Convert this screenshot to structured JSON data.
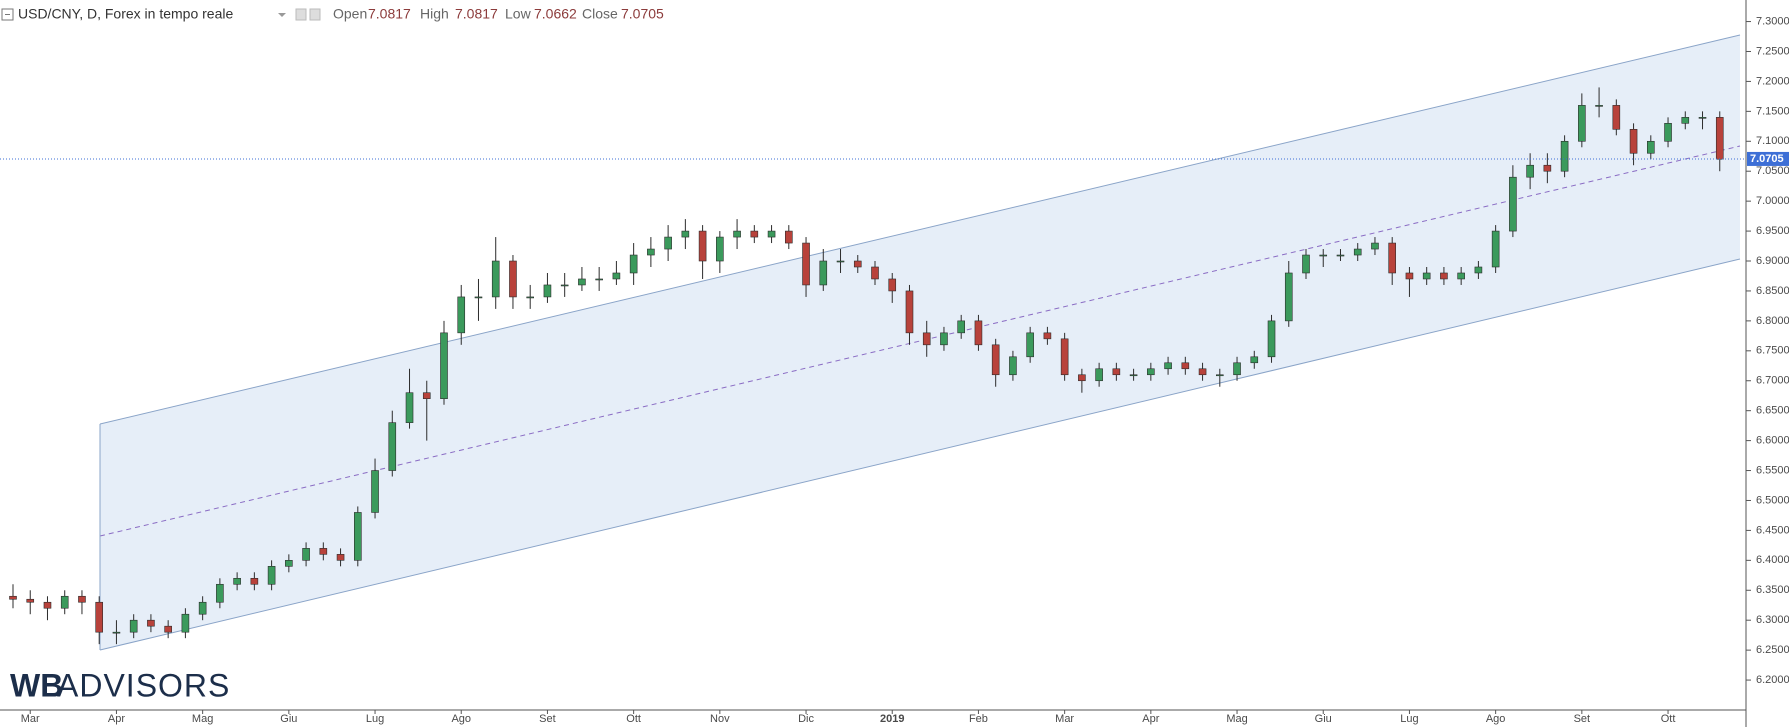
{
  "header": {
    "symbol": "USD/CNY, D, Forex in tempo reale",
    "open_label": "Open",
    "high_label": "High",
    "low_label": "Low",
    "close_label": "Close"
  },
  "logo": {
    "bold": "WB",
    "rest": "ADVISORS"
  },
  "chart_data": {
    "type": "candlestick",
    "last": {
      "open": 7.0817,
      "high": 7.0817,
      "low": 7.0662,
      "close": 7.0705
    },
    "up_color": "#3b9a5c",
    "down_color": "#b8423b",
    "wick_color": "#2c2c2c",
    "price_line_color": "#3d6fd6",
    "categories": [
      null,
      "Mar",
      null,
      null,
      null,
      null,
      "Apr",
      null,
      null,
      null,
      null,
      "Mag",
      null,
      null,
      null,
      null,
      "Giu",
      null,
      null,
      null,
      null,
      "Lug",
      null,
      null,
      null,
      null,
      "Ago",
      null,
      null,
      null,
      null,
      "Set",
      null,
      null,
      null,
      null,
      "Ott",
      null,
      null,
      null,
      null,
      "Nov",
      null,
      null,
      null,
      null,
      "Dic",
      null,
      null,
      null,
      null,
      "2019",
      null,
      null,
      null,
      null,
      "Feb",
      null,
      null,
      null,
      null,
      "Mar",
      null,
      null,
      null,
      null,
      "Apr",
      null,
      null,
      null,
      null,
      "Mag",
      null,
      null,
      null,
      null,
      "Giu",
      null,
      null,
      null,
      null,
      "Lug",
      null,
      null,
      null,
      null,
      "Ago",
      null,
      null,
      null,
      null,
      "Set",
      null,
      null,
      null,
      null,
      "Ott",
      null,
      null,
      null
    ],
    "open": [
      6.34,
      6.335,
      6.33,
      6.32,
      6.34,
      6.33,
      6.28,
      6.28,
      6.3,
      6.29,
      6.28,
      6.31,
      6.33,
      6.36,
      6.37,
      6.36,
      6.39,
      6.4,
      6.42,
      6.41,
      6.4,
      6.48,
      6.55,
      6.63,
      6.68,
      6.67,
      6.78,
      6.84,
      6.84,
      6.9,
      6.84,
      6.84,
      6.86,
      6.86,
      6.87,
      6.87,
      6.88,
      6.91,
      6.92,
      6.94,
      6.95,
      6.9,
      6.94,
      6.95,
      6.94,
      6.95,
      6.93,
      6.86,
      6.9,
      6.9,
      6.89,
      6.87,
      6.85,
      6.78,
      6.76,
      6.78,
      6.8,
      6.76,
      6.71,
      6.74,
      6.78,
      6.77,
      6.71,
      6.7,
      6.72,
      6.71,
      6.71,
      6.72,
      6.73,
      6.72,
      6.71,
      6.71,
      6.73,
      6.74,
      6.8,
      6.88,
      6.91,
      6.91,
      6.91,
      6.92,
      6.93,
      6.88,
      6.87,
      6.88,
      6.87,
      6.88,
      6.89,
      6.95,
      7.04,
      7.06,
      7.05,
      7.1,
      7.16,
      7.16,
      7.12,
      7.08,
      7.1,
      7.13,
      7.14,
      7.14
    ],
    "high": [
      6.36,
      6.35,
      6.34,
      6.35,
      6.35,
      6.34,
      6.3,
      6.31,
      6.31,
      6.3,
      6.32,
      6.34,
      6.37,
      6.38,
      6.38,
      6.4,
      6.41,
      6.43,
      6.43,
      6.42,
      6.49,
      6.57,
      6.65,
      6.72,
      6.7,
      6.8,
      6.86,
      6.87,
      6.94,
      6.91,
      6.86,
      6.88,
      6.88,
      6.89,
      6.89,
      6.9,
      6.93,
      6.94,
      6.96,
      6.97,
      6.96,
      6.95,
      6.97,
      6.96,
      6.96,
      6.96,
      6.94,
      6.92,
      6.92,
      6.91,
      6.9,
      6.88,
      6.86,
      6.8,
      6.79,
      6.81,
      6.81,
      6.77,
      6.75,
      6.79,
      6.79,
      6.78,
      6.72,
      6.73,
      6.73,
      6.72,
      6.73,
      6.74,
      6.74,
      6.73,
      6.72,
      6.74,
      6.75,
      6.81,
      6.9,
      6.92,
      6.92,
      6.92,
      6.93,
      6.94,
      6.94,
      6.89,
      6.89,
      6.89,
      6.89,
      6.9,
      6.96,
      7.06,
      7.08,
      7.08,
      7.11,
      7.18,
      7.19,
      7.17,
      7.13,
      7.11,
      7.14,
      7.15,
      7.15,
      7.15
    ],
    "low": [
      6.32,
      6.31,
      6.3,
      6.31,
      6.31,
      6.26,
      6.26,
      6.27,
      6.28,
      6.27,
      6.27,
      6.3,
      6.32,
      6.35,
      6.35,
      6.35,
      6.38,
      6.39,
      6.4,
      6.39,
      6.39,
      6.47,
      6.54,
      6.62,
      6.6,
      6.66,
      6.76,
      6.8,
      6.82,
      6.82,
      6.82,
      6.83,
      6.84,
      6.85,
      6.85,
      6.86,
      6.86,
      6.89,
      6.9,
      6.92,
      6.87,
      6.88,
      6.92,
      6.93,
      6.93,
      6.92,
      6.84,
      6.85,
      6.88,
      6.88,
      6.86,
      6.83,
      6.76,
      6.74,
      6.75,
      6.77,
      6.75,
      6.69,
      6.7,
      6.73,
      6.76,
      6.7,
      6.68,
      6.69,
      6.7,
      6.7,
      6.7,
      6.71,
      6.71,
      6.7,
      6.69,
      6.7,
      6.72,
      6.73,
      6.79,
      6.87,
      6.89,
      6.9,
      6.9,
      6.91,
      6.86,
      6.84,
      6.86,
      6.86,
      6.86,
      6.87,
      6.88,
      6.94,
      7.02,
      7.03,
      7.04,
      7.09,
      7.14,
      7.11,
      7.06,
      7.07,
      7.09,
      7.12,
      7.12,
      7.05
    ],
    "close": [
      6.335,
      6.33,
      6.32,
      6.34,
      6.33,
      6.28,
      6.28,
      6.3,
      6.29,
      6.28,
      6.31,
      6.33,
      6.36,
      6.37,
      6.36,
      6.39,
      6.4,
      6.42,
      6.41,
      6.4,
      6.48,
      6.55,
      6.63,
      6.68,
      6.67,
      6.78,
      6.84,
      6.84,
      6.9,
      6.84,
      6.84,
      6.86,
      6.86,
      6.87,
      6.87,
      6.88,
      6.91,
      6.92,
      6.94,
      6.95,
      6.9,
      6.94,
      6.95,
      6.94,
      6.95,
      6.93,
      6.86,
      6.9,
      6.9,
      6.89,
      6.87,
      6.85,
      6.78,
      6.76,
      6.78,
      6.8,
      6.76,
      6.71,
      6.74,
      6.78,
      6.77,
      6.71,
      6.7,
      6.72,
      6.71,
      6.71,
      6.72,
      6.73,
      6.72,
      6.71,
      6.71,
      6.73,
      6.74,
      6.8,
      6.88,
      6.91,
      6.91,
      6.91,
      6.92,
      6.93,
      6.88,
      6.87,
      6.88,
      6.87,
      6.88,
      6.89,
      6.95,
      7.04,
      7.06,
      7.05,
      7.1,
      7.16,
      7.16,
      7.12,
      7.08,
      7.1,
      7.13,
      7.14,
      7.14,
      7.07
    ],
    "ylim": [
      6.15,
      7.336
    ],
    "yticks": [
      {
        "value": 6.2,
        "label": "6.2000"
      },
      {
        "value": 6.25,
        "label": "6.2500"
      },
      {
        "value": 6.3,
        "label": "6.3000"
      },
      {
        "value": 6.35,
        "label": "6.3500"
      },
      {
        "value": 6.4,
        "label": "6.4000"
      },
      {
        "value": 6.45,
        "label": "6.4500"
      },
      {
        "value": 6.5,
        "label": "6.5000"
      },
      {
        "value": 6.55,
        "label": "6.5500"
      },
      {
        "value": 6.6,
        "label": "6.6000"
      },
      {
        "value": 6.65,
        "label": "6.6500"
      },
      {
        "value": 6.7,
        "label": "6.7000"
      },
      {
        "value": 6.75,
        "label": "6.7500"
      },
      {
        "value": 6.8,
        "label": "6.8000"
      },
      {
        "value": 6.85,
        "label": "6.8500"
      },
      {
        "value": 6.9,
        "label": "6.9000"
      },
      {
        "value": 6.95,
        "label": "6.9500"
      },
      {
        "value": 7.0,
        "label": "7.0000"
      },
      {
        "value": 7.05,
        "label": "7.0500"
      },
      {
        "value": 7.1,
        "label": "7.1000"
      },
      {
        "value": 7.15,
        "label": "7.1500"
      },
      {
        "value": 7.2,
        "label": "7.2000"
      },
      {
        "value": 7.25,
        "label": "7.2500"
      },
      {
        "value": 7.3,
        "label": "7.3000"
      }
    ]
  }
}
